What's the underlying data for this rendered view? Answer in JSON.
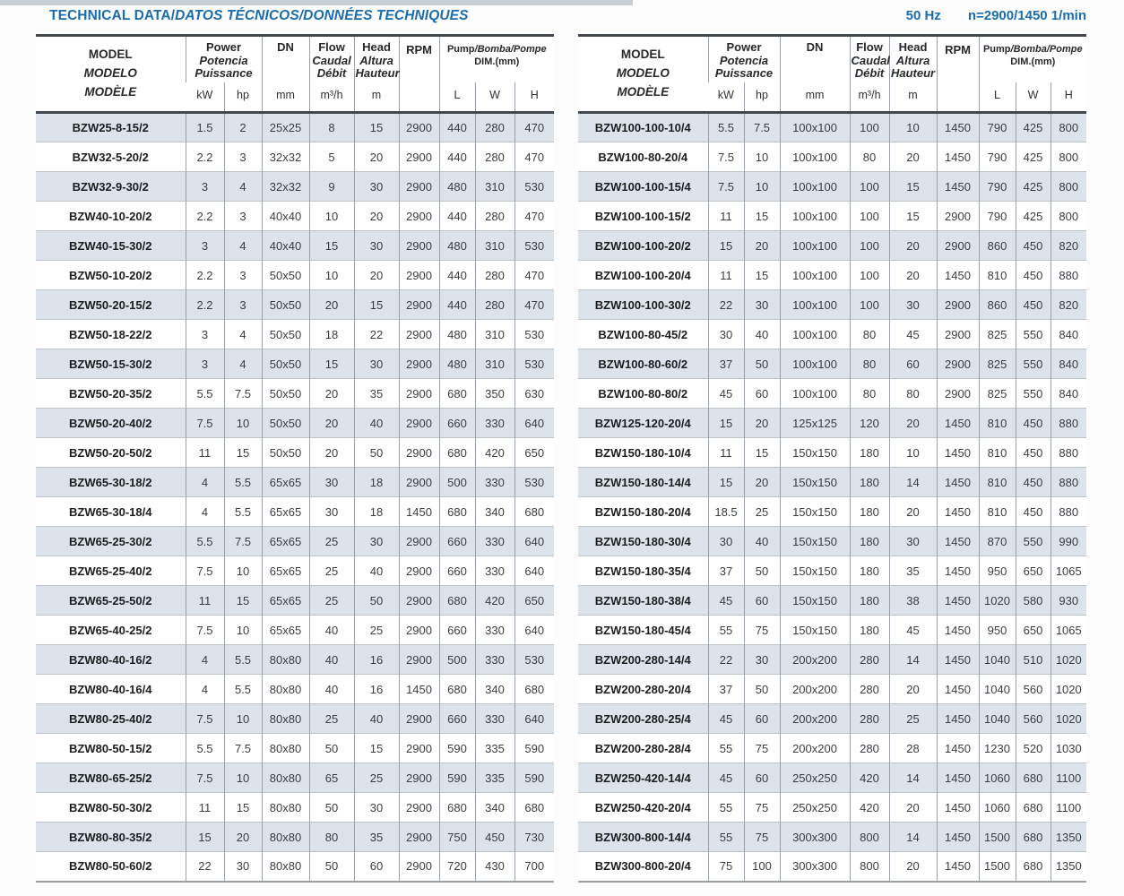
{
  "title": {
    "main": "TECHNICAL DATA/",
    "localized": "DATOS TÉCNICOS/DONNÉES TECHNIQUES"
  },
  "frequency": "50 Hz",
  "speed": "n=2900/1450 1/min",
  "colors": {
    "accent_blue": "#1a6cab",
    "row_shade": "#dce3ea",
    "rule_dark": "#42484e",
    "grid_line": "#9aa1a8"
  },
  "header": {
    "model": [
      "MODEL",
      "MODELO",
      "MODÈLE"
    ],
    "power": [
      "Power",
      "Potencia",
      "Puissance"
    ],
    "power_units": [
      "kW",
      "hp"
    ],
    "dn_label": "DN",
    "dn_unit": "mm",
    "flow": [
      "Flow",
      "Caudal",
      "Débit"
    ],
    "flow_unit": "m³/h",
    "head": [
      "Head",
      "Altura",
      "Hauteur"
    ],
    "head_unit": "m",
    "rpm_label": "RPM",
    "dim_title_main": "Pump",
    "dim_title_rest": "/Bomba/Pompe",
    "dim_subtitle": "DIM.(mm)",
    "dim_units": [
      "L",
      "W",
      "H"
    ]
  },
  "tables": {
    "left": {
      "rows": [
        [
          "BZW25-8-15/2",
          "1.5",
          "2",
          "25x25",
          "8",
          "15",
          "2900",
          "440",
          "280",
          "470"
        ],
        [
          "BZW32-5-20/2",
          "2.2",
          "3",
          "32x32",
          "5",
          "20",
          "2900",
          "440",
          "280",
          "470"
        ],
        [
          "BZW32-9-30/2",
          "3",
          "4",
          "32x32",
          "9",
          "30",
          "2900",
          "480",
          "310",
          "530"
        ],
        [
          "BZW40-10-20/2",
          "2.2",
          "3",
          "40x40",
          "10",
          "20",
          "2900",
          "440",
          "280",
          "470"
        ],
        [
          "BZW40-15-30/2",
          "3",
          "4",
          "40x40",
          "15",
          "30",
          "2900",
          "480",
          "310",
          "530"
        ],
        [
          "BZW50-10-20/2",
          "2.2",
          "3",
          "50x50",
          "10",
          "20",
          "2900",
          "440",
          "280",
          "470"
        ],
        [
          "BZW50-20-15/2",
          "2.2",
          "3",
          "50x50",
          "20",
          "15",
          "2900",
          "440",
          "280",
          "470"
        ],
        [
          "BZW50-18-22/2",
          "3",
          "4",
          "50x50",
          "18",
          "22",
          "2900",
          "480",
          "310",
          "530"
        ],
        [
          "BZW50-15-30/2",
          "3",
          "4",
          "50x50",
          "15",
          "30",
          "2900",
          "480",
          "310",
          "530"
        ],
        [
          "BZW50-20-35/2",
          "5.5",
          "7.5",
          "50x50",
          "20",
          "35",
          "2900",
          "680",
          "350",
          "630"
        ],
        [
          "BZW50-20-40/2",
          "7.5",
          "10",
          "50x50",
          "20",
          "40",
          "2900",
          "660",
          "330",
          "640"
        ],
        [
          "BZW50-20-50/2",
          "11",
          "15",
          "50x50",
          "20",
          "50",
          "2900",
          "680",
          "420",
          "650"
        ],
        [
          "BZW65-30-18/2",
          "4",
          "5.5",
          "65x65",
          "30",
          "18",
          "2900",
          "500",
          "330",
          "530"
        ],
        [
          "BZW65-30-18/4",
          "4",
          "5.5",
          "65x65",
          "30",
          "18",
          "1450",
          "680",
          "340",
          "680"
        ],
        [
          "BZW65-25-30/2",
          "5.5",
          "7.5",
          "65x65",
          "25",
          "30",
          "2900",
          "660",
          "330",
          "640"
        ],
        [
          "BZW65-25-40/2",
          "7.5",
          "10",
          "65x65",
          "25",
          "40",
          "2900",
          "660",
          "330",
          "640"
        ],
        [
          "BZW65-25-50/2",
          "11",
          "15",
          "65x65",
          "25",
          "50",
          "2900",
          "680",
          "420",
          "650"
        ],
        [
          "BZW65-40-25/2",
          "7.5",
          "10",
          "65x65",
          "40",
          "25",
          "2900",
          "660",
          "330",
          "640"
        ],
        [
          "BZW80-40-16/2",
          "4",
          "5.5",
          "80x80",
          "40",
          "16",
          "2900",
          "500",
          "330",
          "530"
        ],
        [
          "BZW80-40-16/4",
          "4",
          "5.5",
          "80x80",
          "40",
          "16",
          "1450",
          "680",
          "340",
          "680"
        ],
        [
          "BZW80-25-40/2",
          "7.5",
          "10",
          "80x80",
          "25",
          "40",
          "2900",
          "660",
          "330",
          "640"
        ],
        [
          "BZW80-50-15/2",
          "5.5",
          "7.5",
          "80x80",
          "50",
          "15",
          "2900",
          "590",
          "335",
          "590"
        ],
        [
          "BZW80-65-25/2",
          "7.5",
          "10",
          "80x80",
          "65",
          "25",
          "2900",
          "590",
          "335",
          "590"
        ],
        [
          "BZW80-50-30/2",
          "11",
          "15",
          "80x80",
          "50",
          "30",
          "2900",
          "680",
          "340",
          "680"
        ],
        [
          "BZW80-80-35/2",
          "15",
          "20",
          "80x80",
          "80",
          "35",
          "2900",
          "750",
          "450",
          "730"
        ],
        [
          "BZW80-50-60/2",
          "22",
          "30",
          "80x80",
          "50",
          "60",
          "2900",
          "720",
          "430",
          "700"
        ]
      ]
    },
    "right": {
      "rows": [
        [
          "BZW100-100-10/4",
          "5.5",
          "7.5",
          "100x100",
          "100",
          "10",
          "1450",
          "790",
          "425",
          "800"
        ],
        [
          "BZW100-80-20/4",
          "7.5",
          "10",
          "100x100",
          "80",
          "20",
          "1450",
          "790",
          "425",
          "800"
        ],
        [
          "BZW100-100-15/4",
          "7.5",
          "10",
          "100x100",
          "100",
          "15",
          "1450",
          "790",
          "425",
          "800"
        ],
        [
          "BZW100-100-15/2",
          "11",
          "15",
          "100x100",
          "100",
          "15",
          "2900",
          "790",
          "425",
          "800"
        ],
        [
          "BZW100-100-20/2",
          "15",
          "20",
          "100x100",
          "100",
          "20",
          "2900",
          "860",
          "450",
          "820"
        ],
        [
          "BZW100-100-20/4",
          "11",
          "15",
          "100x100",
          "100",
          "20",
          "1450",
          "810",
          "450",
          "880"
        ],
        [
          "BZW100-100-30/2",
          "22",
          "30",
          "100x100",
          "100",
          "30",
          "2900",
          "860",
          "450",
          "820"
        ],
        [
          "BZW100-80-45/2",
          "30",
          "40",
          "100x100",
          "80",
          "45",
          "2900",
          "825",
          "550",
          "840"
        ],
        [
          "BZW100-80-60/2",
          "37",
          "50",
          "100x100",
          "80",
          "60",
          "2900",
          "825",
          "550",
          "840"
        ],
        [
          "BZW100-80-80/2",
          "45",
          "60",
          "100x100",
          "80",
          "80",
          "2900",
          "825",
          "550",
          "840"
        ],
        [
          "BZW125-120-20/4",
          "15",
          "20",
          "125x125",
          "120",
          "20",
          "1450",
          "810",
          "450",
          "880"
        ],
        [
          "BZW150-180-10/4",
          "11",
          "15",
          "150x150",
          "180",
          "10",
          "1450",
          "810",
          "450",
          "880"
        ],
        [
          "BZW150-180-14/4",
          "15",
          "20",
          "150x150",
          "180",
          "14",
          "1450",
          "810",
          "450",
          "880"
        ],
        [
          "BZW150-180-20/4",
          "18.5",
          "25",
          "150x150",
          "180",
          "20",
          "1450",
          "810",
          "450",
          "880"
        ],
        [
          "BZW150-180-30/4",
          "30",
          "40",
          "150x150",
          "180",
          "30",
          "1450",
          "870",
          "550",
          "990"
        ],
        [
          "BZW150-180-35/4",
          "37",
          "50",
          "150x150",
          "180",
          "35",
          "1450",
          "950",
          "650",
          "1065"
        ],
        [
          "BZW150-180-38/4",
          "45",
          "60",
          "150x150",
          "180",
          "38",
          "1450",
          "1020",
          "580",
          "930"
        ],
        [
          "BZW150-180-45/4",
          "55",
          "75",
          "150x150",
          "180",
          "45",
          "1450",
          "950",
          "650",
          "1065"
        ],
        [
          "BZW200-280-14/4",
          "22",
          "30",
          "200x200",
          "280",
          "14",
          "1450",
          "1040",
          "510",
          "1020"
        ],
        [
          "BZW200-280-20/4",
          "37",
          "50",
          "200x200",
          "280",
          "20",
          "1450",
          "1040",
          "560",
          "1020"
        ],
        [
          "BZW200-280-25/4",
          "45",
          "60",
          "200x200",
          "280",
          "25",
          "1450",
          "1040",
          "560",
          "1020"
        ],
        [
          "BZW200-280-28/4",
          "55",
          "75",
          "200x200",
          "280",
          "28",
          "1450",
          "1230",
          "520",
          "1030"
        ],
        [
          "BZW250-420-14/4",
          "45",
          "60",
          "250x250",
          "420",
          "14",
          "1450",
          "1060",
          "680",
          "1100"
        ],
        [
          "BZW250-420-20/4",
          "55",
          "75",
          "250x250",
          "420",
          "20",
          "1450",
          "1060",
          "680",
          "1100"
        ],
        [
          "BZW300-800-14/4",
          "55",
          "75",
          "300x300",
          "800",
          "14",
          "1450",
          "1500",
          "680",
          "1350"
        ],
        [
          "BZW300-800-20/4",
          "75",
          "100",
          "300x300",
          "800",
          "20",
          "1450",
          "1500",
          "680",
          "1350"
        ]
      ]
    }
  }
}
